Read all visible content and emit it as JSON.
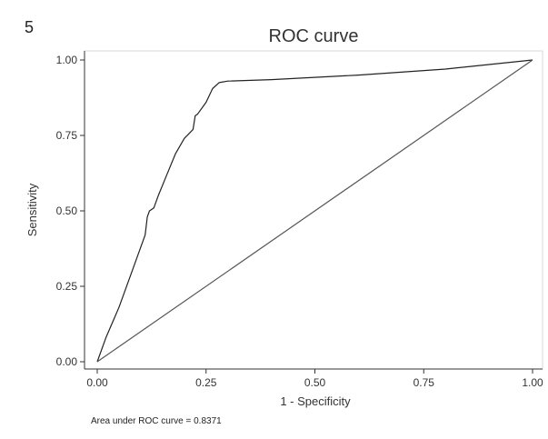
{
  "panel_label": "5",
  "footnote": "Area under ROC curve = 0.8371",
  "chart_data": {
    "type": "line",
    "title": "ROC curve",
    "xlabel": "1 - Specificity",
    "ylabel": "Sensitivity",
    "xlim": [
      0,
      1
    ],
    "ylim": [
      0,
      1
    ],
    "x_ticks": [
      "0.00",
      "0.25",
      "0.50",
      "0.75",
      "1.00"
    ],
    "y_ticks": [
      "0.00",
      "0.25",
      "0.50",
      "0.75",
      "1.00"
    ],
    "grid": false,
    "legend": "none",
    "series": [
      {
        "x": [
          0.0,
          0.02,
          0.05,
          0.08,
          0.11,
          0.115,
          0.12,
          0.13,
          0.14,
          0.16,
          0.18,
          0.2,
          0.22,
          0.225,
          0.23,
          0.25,
          0.265,
          0.28,
          0.3,
          0.4,
          0.6,
          0.8,
          1.0
        ],
        "y": [
          0.0,
          0.08,
          0.18,
          0.3,
          0.42,
          0.48,
          0.5,
          0.51,
          0.55,
          0.62,
          0.69,
          0.74,
          0.77,
          0.815,
          0.82,
          0.86,
          0.905,
          0.925,
          0.93,
          0.935,
          0.95,
          0.97,
          1.0
        ],
        "color": "#222222"
      },
      {
        "x": [
          0,
          1
        ],
        "y": [
          0,
          1
        ],
        "color": "#555555"
      }
    ]
  }
}
